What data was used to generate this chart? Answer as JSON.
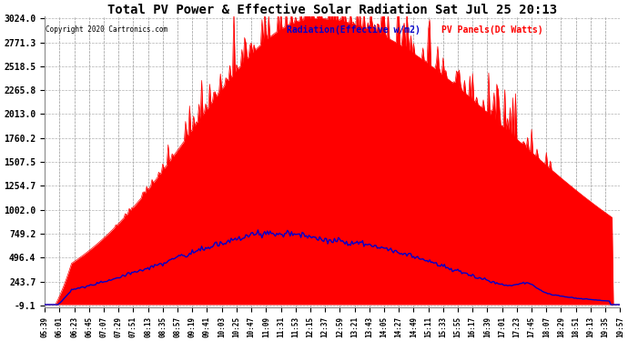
{
  "title": "Total PV Power & Effective Solar Radiation Sat Jul 25 20:13",
  "copyright": "Copyright 2020 Cartronics.com",
  "legend_radiation": "Radiation(Effective w/m2)",
  "legend_pv": "PV Panels(DC Watts)",
  "yticks": [
    3024.0,
    2771.3,
    2518.5,
    2265.8,
    2013.0,
    1760.2,
    1507.5,
    1254.7,
    1002.0,
    749.2,
    496.4,
    243.7,
    -9.1
  ],
  "ymin": -9.1,
  "ymax": 3024.0,
  "background_color": "#ffffff",
  "grid_color": "#b0b0b0",
  "pv_color": "#ff0000",
  "radiation_color": "#0000cc",
  "title_color": "#000000",
  "copyright_color": "#000000",
  "x_tick_labels": [
    "05:39",
    "06:01",
    "06:23",
    "06:45",
    "07:07",
    "07:29",
    "07:51",
    "08:13",
    "08:35",
    "08:57",
    "09:19",
    "09:41",
    "10:03",
    "10:25",
    "10:47",
    "11:09",
    "11:31",
    "11:53",
    "12:15",
    "12:37",
    "12:59",
    "13:21",
    "13:43",
    "14:05",
    "14:27",
    "14:49",
    "15:11",
    "15:33",
    "15:55",
    "16:17",
    "16:39",
    "17:01",
    "17:23",
    "17:45",
    "18:07",
    "18:29",
    "18:51",
    "19:13",
    "19:35",
    "19:57"
  ]
}
